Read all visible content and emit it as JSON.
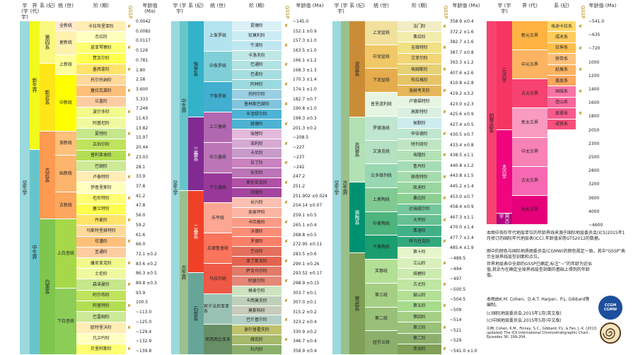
{
  "headers": {
    "eon": "宇 (宇宇)",
    "era": "界 (代)",
    "system": "系 (纪)",
    "series": "统 (世)",
    "stage": "阶 (期)",
    "gssp": "GSSP",
    "age": "年龄值 (Ma)"
  },
  "panel1": {
    "eon": "显生宇",
    "eras": [
      "新生界",
      "中生界"
    ],
    "systems": [
      "第四系",
      "新近系",
      "古近系",
      "白垩系"
    ],
    "series": [
      "全新统",
      "更新统",
      "上新统",
      "中新统",
      "渐新统",
      "始新统",
      "古新统",
      "上白垩统",
      "下白垩统"
    ],
    "stages": [
      "卡拉布里亚阶",
      "杰拉阶",
      "皮亚琴察阶",
      "赞克尔阶",
      "墨西拿阶",
      "托尔托纳阶",
      "塞拉瓦莱阶",
      "兰盖阶",
      "波尔多阶",
      "阿基坦阶",
      "夏特阶",
      "吕珀尔阶",
      "普利亚本阶",
      "巴顿阶",
      "卢泰特阶",
      "伊普里斯阶",
      "坦尼特阶",
      "塞兰特阶",
      "丹麦阶",
      "马斯特里赫特阶",
      "坎潘阶",
      "圣通阶",
      "康尼亚克阶",
      "土伦阶",
      "森诺曼阶",
      "阿尔布阶",
      "阿普特阶",
      "巴雷姆阶",
      "欧特里沃阶",
      "凡兰吟阶",
      "贝里阿斯阶"
    ],
    "ages": [
      "0.0042",
      "0.0082",
      "0.0117",
      "0.126",
      "0.781",
      "1.80",
      "2.58",
      "3.600",
      "5.333",
      "7.246",
      "11.63",
      "13.82",
      "15.97",
      "20.44",
      "23.03",
      "28.1",
      "33.9",
      "37.8",
      "41.2",
      "47.8",
      "56.0",
      "59.2",
      "61.6",
      "66.0",
      "72.1 ±0.2",
      "83.6 ±0.2",
      "86.3 ±0.5",
      "89.8 ±0.3",
      "93.9",
      "100.5",
      "~113.0",
      "~125.0",
      "~129.4",
      "~132.9",
      "~139.8"
    ]
  },
  "panel2": {
    "eon": "显生宇",
    "era": "中生界",
    "era2": "古生界",
    "systems": [
      "侏罗系",
      "三叠系",
      "二叠系",
      "石炭系"
    ],
    "series": [
      "上侏罗统",
      "中侏罗统",
      "下侏罗统",
      "上三叠统",
      "中三叠统",
      "下三叠统",
      "乐平统",
      "瓜德鲁普统",
      "乌拉尔统",
      "宾夕法尼亚亚系",
      "密西西比亚系"
    ],
    "stages": [
      "提塘阶",
      "钦莫利阶",
      "牛津阶",
      "卡洛夫阶",
      "巴通阶",
      "巴柔阶",
      "阿林阶",
      "托阿尔阶",
      "普林斯巴赫阶",
      "辛涅缪尔阶",
      "赫塘阶",
      "瑞替阶",
      "诺利阶",
      "卡尼阶",
      "拉丁阶",
      "安尼阶",
      "奥伦尼克阶",
      "印度阶",
      "长兴阶",
      "吴家坪阶",
      "卡匹敦阶",
      "沃德阶",
      "罗德阶",
      "空谷阶",
      "亚丁斯克阶",
      "萨克马尔阶",
      "阿瑟尔阶",
      "格舍尔阶",
      "卡西莫夫阶",
      "莫斯科阶",
      "巴什基尔阶",
      "谢尔普霍夫阶",
      "维宪阶",
      "杜内阶"
    ],
    "ages": [
      "~145.0",
      "152.1 ±0.9",
      "157.3 ±1.0",
      "163.5 ±1.0",
      "166.1 ±1.2",
      "168.3 ±1.3",
      "170.3 ±1.4",
      "174.1 ±1.0",
      "182.7 ±0.7",
      "190.8 ±1.0",
      "199.3 ±0.3",
      "201.3 ±0.2",
      "~208.5",
      "~227",
      "~237",
      "~242",
      "247.2",
      "251.2",
      "251.902 ±0.024",
      "254.14 ±0.07",
      "259.1 ±0.5",
      "265.1 ±0.4",
      "268.8 ±0.5",
      "272.95 ±0.11",
      "283.5 ±0.6",
      "290.1 ±0.26",
      "293.52 ±0.17",
      "298.9 ±0.15",
      "303.7 ±0.1",
      "307.0 ±0.1",
      "315.2 ±0.2",
      "323.2 ±0.4",
      "330.9 ±0.2",
      "346.7 ±0.4",
      "358.9 ±0.4"
    ]
  },
  "panel3": {
    "eon": "显生宇",
    "era": "古生界",
    "systems": [
      "泥盆系",
      "志留系",
      "奥陶系",
      "寒武系"
    ],
    "series": [
      "上泥盆统",
      "中泥盆统",
      "下泥盆统",
      "普里道利统",
      "罗德洛统",
      "文洛克统",
      "兰多维列统",
      "上奥陶统",
      "中奥陶统",
      "下奥陶统",
      "芙蓉统",
      "第三统",
      "第二统",
      "纽芬兰统"
    ],
    "stages": [
      "法门阶",
      "弗拉阶",
      "吉维特阶",
      "艾菲尔阶",
      "埃姆斯阶",
      "布拉格阶",
      "洛赫考夫阶",
      "卢德福特阶",
      "高斯特阶",
      "侯默阶",
      "申伍德阶",
      "特列奇阶",
      "埃隆阶",
      "鲁丹阶",
      "赫南特阶",
      "凯迪阶",
      "桑比阶",
      "达瑞威尔阶",
      "大坪阶",
      "弗洛阶",
      "特马豆克阶",
      "第十阶",
      "江山阶",
      "排碧阶",
      "古丈阶",
      "鼓山阶",
      "第五阶",
      "第四阶",
      "第三阶",
      "第二阶",
      "幸运阶"
    ],
    "ages": [
      "358.9 ±0.4",
      "372.2 ±1.6",
      "382.7 ±1.6",
      "387.7 ±0.8",
      "393.3 ±1.2",
      "407.6 ±2.6",
      "410.8 ±2.8",
      "419.2 ±3.2",
      "423.0 ±2.3",
      "425.6 ±0.9",
      "427.4 ±0.5",
      "430.5 ±0.7",
      "433.4 ±0.8",
      "438.5 ±1.1",
      "440.8 ±1.2",
      "443.8 ±1.5",
      "445.2 ±1.4",
      "453.0 ±0.7",
      "458.4 ±0.9",
      "467.3 ±1.1",
      "470.0 ±1.4",
      "477.7 ±1.4",
      "485.4 ±1.9",
      "~489.5",
      "~494",
      "~497",
      "~500.5",
      "~504.5",
      "~509",
      "~514",
      "~521",
      "~529",
      "~541.0 ±1.0"
    ]
  },
  "panel4": {
    "eon": "前寒武系",
    "eons": [
      "元古宇",
      "太古宇",
      "冥古宇"
    ],
    "eras": [
      "新元古界",
      "中元古界",
      "古元古界",
      "新太古界",
      "中太古界",
      "古太古界",
      "始太古界"
    ],
    "systems": [
      "埃迪卡拉系",
      "成冰系",
      "拉伸系",
      "狭带系",
      "延展系",
      "盖层系",
      "固结系",
      "造山系",
      "层侵系",
      "成铁系"
    ],
    "ages": [
      "~541.0",
      "~635",
      "~720",
      "1000",
      "1200",
      "1400",
      "1600",
      "1800",
      "2050",
      "2300",
      "2500",
      "2800",
      "3200",
      "3600",
      "4000",
      "~4600"
    ]
  },
  "notes": {
    "p1": "本图中各阶年代地层单位的年龄界线来源于国际地层委员会(ICS)2015年1月修订的国际年代地层表(ICC),年龄值采用GTS2012的数据。",
    "p2": "图中的颜色与国际地质图委员会(CGMW)的颜色规定一致。其中\"GSSP\"表示全球界线层型剖面和点位。",
    "p3": "世界地层表中全部的GSSP已确定,标注“~”的年龄为近似值,其余为在确定全球界线层型剖面的基础上得到的年龄值。",
    "p4": "本图由K.M. Cohen、D.A.T. Harper、P.L. Gibbard等编制。",
    "p5": "(c)国际地层委员会,2015年1月(英文版)",
    "p6": "(c)中国地层委员会,2015年5月(中文版)",
    "cite": "引用: Cohen, K.M., Finney, S.C., Gibbard, P.L. & Fan, J.-X. (2013; updated) The ICS International Chronostratigraphic Chart. Episodes 36: 199-204.",
    "logo1": "CCGM CGMW"
  }
}
